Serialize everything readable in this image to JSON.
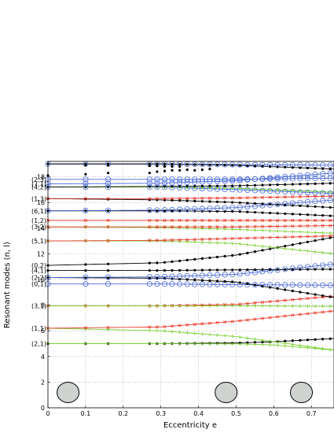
{
  "chart_data": {
    "type": "line",
    "xlabel": "Eccentricity e",
    "ylabel": "Resonant modes (n, l)",
    "xlim": [
      0,
      0.76
    ],
    "ylim": [
      0,
      19.2
    ],
    "grid": true,
    "x_ticks": [
      "0",
      "0.1",
      "0.2",
      "0.3",
      "0.4",
      "0.5",
      "0.6",
      "0.7"
    ],
    "y_ticks": [
      "0",
      "2",
      "4",
      "6",
      "8",
      "10",
      "12",
      "14",
      "16",
      "18"
    ],
    "mode_labels": [
      "(2,1)",
      "(1,1)",
      "(3,1)",
      "(0,1)",
      "(2,2)",
      "(4,1)",
      "(0,2)",
      "(5,1)",
      "(3,2)",
      "(1,2)",
      "(6,1)",
      "(1,3)",
      "(4,2)",
      "(7,1)",
      "(2,3)"
    ],
    "mode_label_values": [
      5.0,
      6.2,
      7.95,
      9.65,
      10.15,
      10.7,
      11.1,
      13.0,
      14.1,
      14.6,
      15.35,
      16.3,
      17.2,
      17.45,
      17.8
    ],
    "ellipse_positions_e": [
      0.02,
      0.44,
      0.64
    ],
    "series": [
      {
        "points": [
          [
            0,
            5.0
          ],
          [
            0.3,
            5.0
          ],
          [
            0.5,
            5.05
          ],
          [
            0.6,
            5.15
          ],
          [
            0.76,
            5.4
          ]
        ],
        "color": "#000000",
        "marker": "dot"
      },
      {
        "points": [
          [
            0,
            5.0
          ],
          [
            0.3,
            5.0
          ],
          [
            0.5,
            4.98
          ],
          [
            0.6,
            4.9
          ],
          [
            0.76,
            4.5
          ]
        ],
        "color": "#78d030",
        "marker": "plus"
      },
      {
        "points": [
          [
            0,
            6.2
          ],
          [
            0.3,
            6.0
          ],
          [
            0.5,
            5.55
          ],
          [
            0.76,
            4.5
          ]
        ],
        "color": "#78d030",
        "marker": "plus"
      },
      {
        "points": [
          [
            0,
            6.2
          ],
          [
            0.3,
            6.3
          ],
          [
            0.5,
            6.75
          ],
          [
            0.76,
            7.55
          ]
        ],
        "color": "#e83a2a",
        "marker": "x"
      },
      {
        "points": [
          [
            0,
            7.95
          ],
          [
            0.3,
            7.95
          ],
          [
            0.5,
            8.05
          ],
          [
            0.76,
            8.7
          ]
        ],
        "color": "#e83a2a",
        "marker": "x"
      },
      {
        "points": [
          [
            0,
            7.95
          ],
          [
            0.3,
            7.95
          ],
          [
            0.5,
            7.95
          ],
          [
            0.76,
            7.9
          ]
        ],
        "color": "#78d030",
        "marker": "plus"
      },
      {
        "points": [
          [
            0,
            9.65
          ],
          [
            0.3,
            9.65
          ],
          [
            0.5,
            9.6
          ],
          [
            0.76,
            9.55
          ]
        ],
        "color": "#4a6ad8",
        "marker": "circle"
      },
      {
        "points": [
          [
            0,
            10.15
          ],
          [
            0.3,
            10.1
          ],
          [
            0.5,
            9.8
          ],
          [
            0.76,
            8.6
          ]
        ],
        "color": "#000000",
        "marker": "dot"
      },
      {
        "points": [
          [
            0,
            10.15
          ],
          [
            0.3,
            10.2
          ],
          [
            0.5,
            10.4
          ],
          [
            0.76,
            11.2
          ]
        ],
        "color": "#4a6ad8",
        "marker": "circle"
      },
      {
        "points": [
          [
            0,
            10.7
          ],
          [
            0.3,
            10.7
          ],
          [
            0.5,
            10.75
          ],
          [
            0.76,
            10.8
          ]
        ],
        "color": "#000000",
        "marker": "dot"
      },
      {
        "points": [
          [
            0,
            11.1
          ],
          [
            0.3,
            11.3
          ],
          [
            0.5,
            11.9
          ],
          [
            0.76,
            13.3
          ]
        ],
        "color": "#000000",
        "marker": "dot"
      },
      {
        "points": [
          [
            0,
            13.0
          ],
          [
            0.3,
            13.0
          ],
          [
            0.5,
            12.8
          ],
          [
            0.76,
            12.0
          ]
        ],
        "color": "#78d030",
        "marker": "plus"
      },
      {
        "points": [
          [
            0,
            13.0
          ],
          [
            0.3,
            13.05
          ],
          [
            0.5,
            13.2
          ],
          [
            0.76,
            13.4
          ]
        ],
        "color": "#e83a2a",
        "marker": "x"
      },
      {
        "points": [
          [
            0,
            14.1
          ],
          [
            0.3,
            14.05
          ],
          [
            0.5,
            13.9
          ],
          [
            0.76,
            13.6
          ]
        ],
        "color": "#78d030",
        "marker": "plus"
      },
      {
        "points": [
          [
            0,
            14.1
          ],
          [
            0.3,
            14.1
          ],
          [
            0.5,
            14.1
          ],
          [
            0.76,
            14.2
          ]
        ],
        "color": "#e83a2a",
        "marker": "x"
      },
      {
        "points": [
          [
            0,
            14.6
          ],
          [
            0.3,
            14.6
          ],
          [
            0.5,
            14.6
          ],
          [
            0.76,
            14.6
          ]
        ],
        "color": "#e83a2a",
        "marker": "x"
      },
      {
        "points": [
          [
            0,
            15.35
          ],
          [
            0.3,
            15.35
          ],
          [
            0.5,
            15.3
          ],
          [
            0.76,
            14.95
          ]
        ],
        "color": "#000000",
        "marker": "dot"
      },
      {
        "points": [
          [
            0,
            15.35
          ],
          [
            0.3,
            15.4
          ],
          [
            0.5,
            15.6
          ],
          [
            0.76,
            16.2
          ]
        ],
        "color": "#4a6ad8",
        "marker": "circle"
      },
      {
        "points": [
          [
            0,
            16.3
          ],
          [
            0.3,
            16.2
          ],
          [
            0.5,
            16.0
          ],
          [
            0.76,
            15.6
          ]
        ],
        "color": "#000000",
        "marker": "dot"
      },
      {
        "points": [
          [
            0,
            16.3
          ],
          [
            0.3,
            16.3
          ],
          [
            0.5,
            16.35
          ],
          [
            0.76,
            16.5
          ]
        ],
        "color": "#e83a2a",
        "marker": "x"
      },
      {
        "points": [
          [
            0,
            17.2
          ],
          [
            0.3,
            17.2
          ],
          [
            0.5,
            17.0
          ],
          [
            0.76,
            16.7
          ]
        ],
        "color": "#4a6ad8",
        "marker": "circle"
      },
      {
        "points": [
          [
            0,
            17.2
          ],
          [
            0.3,
            17.2
          ],
          [
            0.5,
            17.1
          ],
          [
            0.76,
            16.8
          ]
        ],
        "color": "#78d030",
        "marker": "plus"
      },
      {
        "points": [
          [
            0,
            17.2
          ],
          [
            0.3,
            17.25
          ],
          [
            0.5,
            17.3
          ],
          [
            0.76,
            17.5
          ]
        ],
        "color": "#000000",
        "marker": "dot"
      },
      {
        "points": [
          [
            0,
            17.45
          ],
          [
            0.3,
            17.5
          ],
          [
            0.5,
            17.7
          ],
          [
            0.76,
            18.3
          ]
        ],
        "color": "#4a6ad8",
        "marker": "circle"
      },
      {
        "points": [
          [
            0,
            17.8
          ],
          [
            0.3,
            17.8
          ],
          [
            0.5,
            17.8
          ],
          [
            0.76,
            17.9
          ]
        ],
        "color": "#4a6ad8",
        "marker": "circle"
      },
      {
        "points": [
          [
            0,
            19.0
          ],
          [
            0.3,
            19.0
          ],
          [
            0.5,
            18.95
          ],
          [
            0.76,
            18.9
          ]
        ],
        "color": "#4a6ad8",
        "marker": "circle"
      },
      {
        "points": [
          [
            0,
            19.0
          ],
          [
            0.3,
            19.0
          ],
          [
            0.5,
            18.9
          ],
          [
            0.76,
            18.6
          ]
        ],
        "color": "#000000",
        "marker": "dot"
      }
    ],
    "scatter_points": [
      [
        0,
        18.1
      ],
      [
        0.1,
        18.2
      ],
      [
        0.16,
        18.3
      ],
      [
        0.27,
        18.3
      ],
      [
        0.29,
        18.4
      ],
      [
        0.31,
        18.45
      ],
      [
        0.33,
        18.5
      ],
      [
        0.35,
        18.5
      ],
      [
        0.37,
        18.55
      ],
      [
        0.39,
        18.5
      ],
      [
        0.41,
        18.55
      ],
      [
        0.43,
        18.6
      ],
      [
        0.1,
        18.9
      ],
      [
        0.16,
        18.9
      ],
      [
        0.27,
        18.85
      ],
      [
        0.29,
        18.85
      ],
      [
        0.31,
        18.8
      ],
      [
        0.33,
        18.8
      ],
      [
        0.35,
        18.8
      ]
    ],
    "sample_x": [
      0,
      0.1,
      0.16,
      0.27,
      0.29,
      0.31,
      0.33,
      0.35,
      0.37,
      0.39,
      0.41,
      0.43,
      0.45,
      0.47,
      0.49,
      0.51,
      0.53,
      0.55,
      0.57,
      0.59,
      0.61,
      0.63,
      0.65,
      0.67,
      0.69,
      0.71,
      0.73,
      0.75
    ]
  }
}
